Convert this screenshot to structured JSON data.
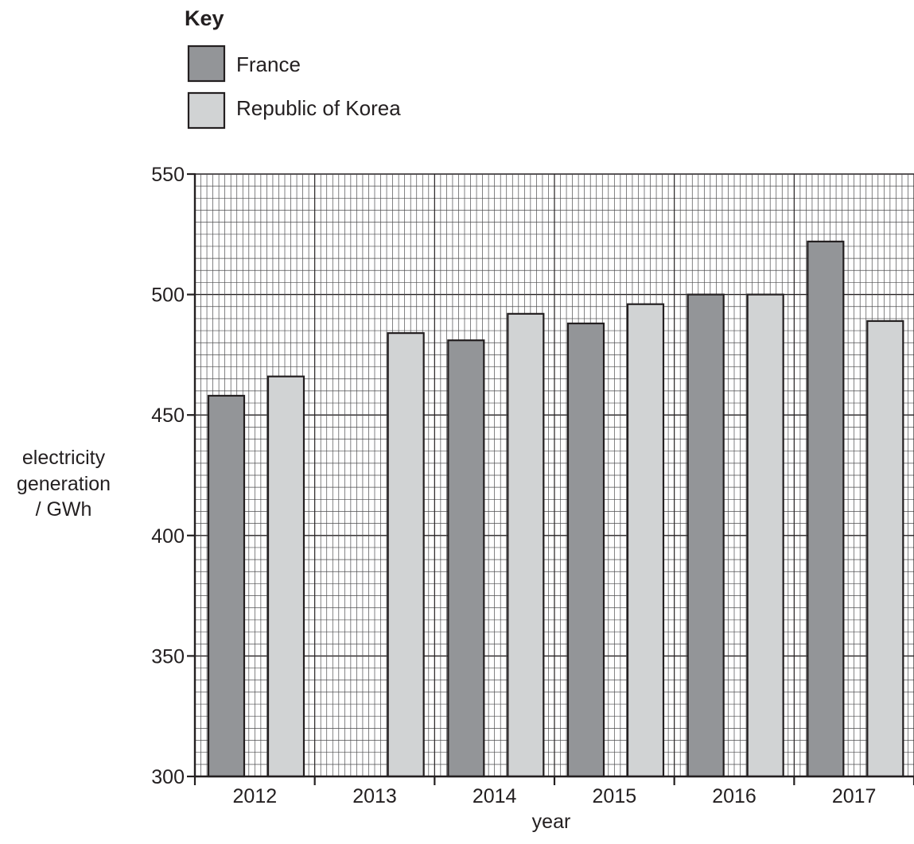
{
  "key": {
    "title": "Key",
    "items": [
      {
        "label": "France",
        "color": "#939598"
      },
      {
        "label": "Republic of Korea",
        "color": "#d1d3d4"
      }
    ]
  },
  "chart_data": {
    "type": "bar",
    "categories": [
      "2012",
      "2013",
      "2014",
      "2015",
      "2016",
      "2017"
    ],
    "series": [
      {
        "name": "France",
        "color": "#939598",
        "values": [
          458,
          null,
          481,
          488,
          500,
          522
        ]
      },
      {
        "name": "Republic of Korea",
        "color": "#d1d3d4",
        "values": [
          466,
          484,
          492,
          496,
          500,
          489
        ]
      }
    ],
    "title": "",
    "xlabel": "year",
    "ylabel_lines": [
      "electricity",
      "generation",
      "/ GWh"
    ],
    "ylim": [
      300,
      550
    ],
    "yticks": [
      300,
      350,
      400,
      450,
      500,
      550
    ],
    "grid": true,
    "legend_position": "top-left"
  }
}
